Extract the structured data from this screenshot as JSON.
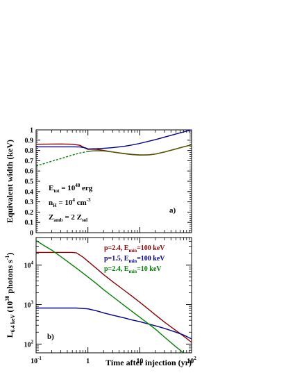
{
  "chart_data": [
    {
      "type": "line",
      "ylabel": "Equivalent width (keV)",
      "panel_label": "a)",
      "x_scale": "log",
      "xlim": [
        0.1,
        100
      ],
      "ylim": [
        0,
        1
      ],
      "y_ticks": [
        "0",
        "0.1",
        "0.2",
        "0.3",
        "0.4",
        "0.5",
        "0.6",
        "0.7",
        "0.8",
        "0.9",
        "1"
      ],
      "annotations": [
        {
          "base": "E",
          "sub": "tot",
          "mid": " = 10",
          "sup": "48",
          "tail": " erg"
        },
        {
          "base": "n",
          "sub": "H",
          "mid": " = 10",
          "sup": "4",
          "tail": " cm"
        },
        {
          "base": "Z",
          "sub": "amb",
          "mid": " = 2 Z",
          "sup": "",
          "tail": "sol"
        }
      ],
      "annotation_extra": {
        "cm_exp": "-3"
      },
      "series": [
        {
          "color": "#8B0000",
          "style": "solid",
          "x": [
            0.1,
            0.2,
            0.3,
            0.5,
            0.7,
            0.9,
            1.0,
            1.2,
            1.5,
            2,
            3,
            5,
            7,
            10,
            15,
            20,
            30,
            50,
            70,
            100
          ],
          "y": [
            0.86,
            0.862,
            0.863,
            0.86,
            0.85,
            0.82,
            0.81,
            0.812,
            0.81,
            0.8,
            0.785,
            0.768,
            0.76,
            0.755,
            0.757,
            0.765,
            0.785,
            0.815,
            0.835,
            0.855
          ]
        },
        {
          "color": "#00008B",
          "style": "solid",
          "x": [
            0.1,
            0.2,
            0.3,
            0.5,
            0.7,
            0.9,
            1.0,
            1.5,
            2,
            3,
            5,
            7,
            10,
            15,
            20,
            30,
            50,
            70,
            100
          ],
          "y": [
            0.835,
            0.835,
            0.835,
            0.835,
            0.834,
            0.825,
            0.815,
            0.817,
            0.82,
            0.827,
            0.84,
            0.853,
            0.868,
            0.89,
            0.905,
            0.93,
            0.96,
            0.98,
            1.0
          ]
        },
        {
          "color": "#008000",
          "style": "dashed",
          "x": [
            0.1,
            0.15,
            0.2,
            0.3,
            0.5,
            0.7,
            1.0
          ],
          "y": [
            0.65,
            0.675,
            0.695,
            0.72,
            0.755,
            0.775,
            0.79
          ]
        },
        {
          "color": "#4a5a00",
          "style": "solid",
          "x": [
            1.0,
            1.2,
            1.5,
            2,
            3,
            5,
            7,
            10,
            15,
            20,
            30,
            50,
            70,
            100
          ],
          "y": [
            0.79,
            0.795,
            0.797,
            0.795,
            0.785,
            0.77,
            0.762,
            0.757,
            0.758,
            0.765,
            0.785,
            0.815,
            0.835,
            0.855
          ]
        }
      ]
    },
    {
      "type": "line",
      "ylabel": "L",
      "ylabel_sub": "6.4 keV",
      "ylabel_rest": " (10",
      "ylabel_sup": "38",
      "ylabel_tail": " photons s",
      "ylabel_sup2": "-1",
      "ylabel_end": ")",
      "xlabel": "Time after injection (yr)",
      "panel_label": "b)",
      "x_scale": "log",
      "y_scale": "log",
      "xlim": [
        0.1,
        100
      ],
      "ylim": [
        60,
        50000
      ],
      "x_ticks": [
        {
          "base": "10",
          "sup": "-1"
        },
        {
          "base": "1",
          "sup": ""
        },
        {
          "base": "10",
          "sup": ""
        },
        {
          "base": "10",
          "sup": "2"
        }
      ],
      "y_ticks": [
        {
          "base": "10",
          "sup": "2"
        },
        {
          "base": "10",
          "sup": "3"
        },
        {
          "base": "10",
          "sup": "4"
        }
      ],
      "legend": [
        {
          "text": "p=2.4, E",
          "sub": "min",
          "tail": "=100 keV",
          "color": "#8B0000"
        },
        {
          "text": "p=1.5, E",
          "sub": "min",
          "tail": "=100 keV",
          "color": "#00008B"
        },
        {
          "text": "p=2.4, E",
          "sub": "min",
          "tail": "=10 keV",
          "color": "#008000"
        }
      ],
      "series": [
        {
          "color": "#8B0000",
          "x": [
            0.1,
            0.2,
            0.3,
            0.5,
            0.6,
            0.8,
            1.0,
            1.5,
            2,
            3,
            5,
            7,
            10,
            15,
            20,
            30,
            50,
            70,
            100
          ],
          "y": [
            21000,
            21000,
            21000,
            21000,
            20500,
            16000,
            12500,
            8000,
            5800,
            3800,
            2300,
            1650,
            1150,
            750,
            550,
            360,
            220,
            160,
            110
          ]
        },
        {
          "color": "#00008B",
          "x": [
            0.1,
            0.3,
            0.6,
            1.0,
            1.5,
            2,
            3,
            5,
            7,
            10,
            15,
            20,
            30,
            50,
            70,
            100
          ],
          "y": [
            820,
            820,
            820,
            780,
            690,
            620,
            540,
            460,
            410,
            370,
            320,
            290,
            250,
            200,
            170,
            135
          ]
        },
        {
          "color": "#008000",
          "x": [
            0.1,
            0.15,
            0.2,
            0.3,
            0.5,
            0.7,
            1.0,
            1.5,
            2,
            3,
            5,
            7,
            10,
            15,
            20,
            30,
            50,
            70
          ],
          "y": [
            42000,
            30000,
            24000,
            16500,
            10000,
            7200,
            5000,
            3300,
            2400,
            1600,
            950,
            680,
            480,
            320,
            240,
            150,
            85,
            60
          ]
        }
      ]
    }
  ]
}
